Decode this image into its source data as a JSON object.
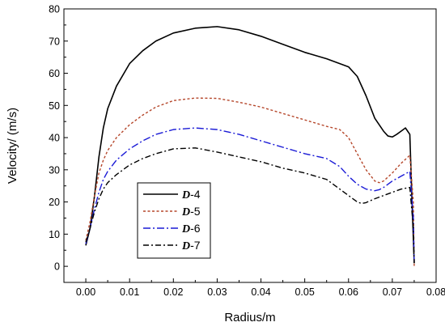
{
  "chart_data": {
    "type": "line",
    "xlabel": "Radius/m",
    "ylabel": "Velocity/ (m/s)",
    "xlim": [
      -0.005,
      0.08
    ],
    "ylim": [
      -5,
      80
    ],
    "xticks": [
      0.0,
      0.01,
      0.02,
      0.03,
      0.04,
      0.05,
      0.06,
      0.07,
      0.08
    ],
    "xtick_labels": [
      "0.00",
      "0.01",
      "0.02",
      "0.03",
      "0.04",
      "0.05",
      "0.06",
      "0.07",
      "0.08"
    ],
    "yticks": [
      0,
      10,
      20,
      30,
      40,
      50,
      60,
      70,
      80
    ],
    "ytick_labels": [
      "0",
      "10",
      "20",
      "30",
      "40",
      "50",
      "60",
      "70",
      "80"
    ],
    "legend_position": "bottom-left",
    "series": [
      {
        "name_prefix": "D",
        "name_suffix": "-4",
        "color": "#000000",
        "dash": "solid",
        "x": [
          0.0,
          0.001,
          0.002,
          0.003,
          0.004,
          0.005,
          0.007,
          0.01,
          0.013,
          0.016,
          0.02,
          0.025,
          0.03,
          0.035,
          0.04,
          0.045,
          0.05,
          0.055,
          0.06,
          0.062,
          0.064,
          0.066,
          0.068,
          0.069,
          0.07,
          0.071,
          0.072,
          0.073,
          0.074,
          0.0745,
          0.075
        ],
        "y": [
          6.5,
          12,
          22,
          34,
          43,
          49,
          56,
          63,
          67,
          70,
          72.5,
          74,
          74.5,
          73.5,
          71.5,
          69,
          66.5,
          64.5,
          62,
          59,
          53,
          46,
          42,
          40.5,
          40.2,
          41,
          42,
          43,
          41,
          20,
          1
        ]
      },
      {
        "name_prefix": "D",
        "name_suffix": "-5",
        "color": "#b5462a",
        "dash": "3,2.5",
        "x": [
          0.0,
          0.001,
          0.002,
          0.003,
          0.004,
          0.005,
          0.007,
          0.01,
          0.013,
          0.016,
          0.02,
          0.025,
          0.03,
          0.035,
          0.04,
          0.045,
          0.05,
          0.055,
          0.058,
          0.06,
          0.062,
          0.064,
          0.066,
          0.067,
          0.068,
          0.07,
          0.072,
          0.074,
          0.0748,
          0.075
        ],
        "y": [
          8,
          14,
          22,
          29,
          33,
          36,
          40,
          44,
          47,
          49.5,
          51.5,
          52.3,
          52.2,
          51,
          49.5,
          47.5,
          45.5,
          43.5,
          42.5,
          40,
          35,
          30,
          26.5,
          26,
          26.5,
          29,
          32,
          34.5,
          20,
          0
        ]
      },
      {
        "name_prefix": "D",
        "name_suffix": "-6",
        "color": "#1a1ad6",
        "dash": "9,3,2,3",
        "x": [
          0.0,
          0.001,
          0.002,
          0.003,
          0.004,
          0.005,
          0.007,
          0.01,
          0.013,
          0.016,
          0.02,
          0.025,
          0.03,
          0.035,
          0.04,
          0.045,
          0.05,
          0.055,
          0.058,
          0.06,
          0.062,
          0.064,
          0.066,
          0.067,
          0.068,
          0.07,
          0.072,
          0.074,
          0.0748,
          0.075
        ],
        "y": [
          7,
          12,
          18,
          23,
          27,
          29.5,
          33,
          36.5,
          39,
          41,
          42.5,
          43,
          42.5,
          41,
          39,
          37,
          35,
          33.5,
          31,
          28,
          25.5,
          24,
          23.5,
          23.8,
          24.5,
          26.5,
          28,
          29.5,
          15,
          1
        ]
      },
      {
        "name_prefix": "D",
        "name_suffix": "-7",
        "color": "#000000",
        "dash": "7,3,2,3",
        "x": [
          0.0,
          0.001,
          0.002,
          0.003,
          0.004,
          0.005,
          0.007,
          0.01,
          0.013,
          0.016,
          0.02,
          0.025,
          0.03,
          0.035,
          0.04,
          0.045,
          0.05,
          0.055,
          0.058,
          0.06,
          0.062,
          0.063,
          0.064,
          0.066,
          0.068,
          0.07,
          0.072,
          0.074,
          0.0748,
          0.075
        ],
        "y": [
          7.5,
          12,
          17,
          21,
          24,
          26,
          28.5,
          31.5,
          33.5,
          35,
          36.5,
          36.8,
          35.5,
          34,
          32.5,
          30.5,
          29,
          27,
          24,
          22,
          20,
          19.5,
          19.8,
          21,
          22,
          23,
          24,
          24.5,
          12,
          1
        ]
      }
    ]
  }
}
